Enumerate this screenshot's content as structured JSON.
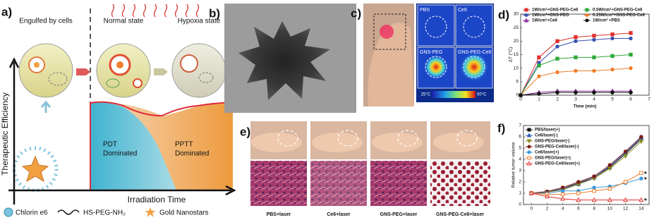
{
  "panel_labels": [
    "a)",
    "b)",
    "c)",
    "d)",
    "e)",
    "f)"
  ],
  "schematic": {
    "states": [
      "Engulfed by cells",
      "Normal state",
      "Hypoxia state"
    ],
    "pdt": [
      "PDT",
      "Dominated"
    ],
    "pptt": [
      "PPTT",
      "Dominated"
    ],
    "y_axis_label": "Therapeutic Efficiency",
    "x_axis_label": "Irradiation Time",
    "legend": [
      "Chlorin e6",
      "HS-PEG-NH₂",
      "Gold Nanostars"
    ]
  },
  "thermal": {
    "labels": [
      "PBS",
      "Ce6",
      "GNS-PEG",
      "GNS-PEG-Ce6"
    ],
    "scale_min": "25°C",
    "scale_max": "50°C"
  },
  "histology": {
    "labels": [
      "PBS+laser",
      "Ce6+laser",
      "GNS-PEG+laser",
      "GNS-PEG-Ce6+laser"
    ]
  },
  "chart_data": [
    {
      "type": "line",
      "x_label": "Time (min)",
      "y_label": "ΔT (°C)",
      "x": [
        0,
        1,
        2,
        3,
        4,
        5,
        6
      ],
      "xlim": [
        0,
        7
      ],
      "xticks": [
        0,
        1,
        2,
        3,
        4,
        5,
        6,
        7
      ],
      "ylim": [
        0,
        30
      ],
      "yticks": [
        0,
        5,
        10,
        15,
        20,
        25,
        30
      ],
      "series": [
        {
          "name": "1W/cm²+GNS-PEG-Ce6",
          "color": "#e0312e",
          "marker": "square",
          "values": [
            0,
            14,
            20,
            21.5,
            22,
            22.5,
            23
          ]
        },
        {
          "name": "1W/cm²+GNS-PEG",
          "color": "#3a4fb0",
          "marker": "circle",
          "values": [
            0,
            12,
            18,
            20,
            20.5,
            21,
            21
          ]
        },
        {
          "name": "1W/cm²+Ce6",
          "color": "#8a2a9a",
          "marker": "triangle",
          "values": [
            0,
            1,
            1.5,
            1.5,
            1.5,
            1.5,
            1.5
          ]
        },
        {
          "name": "0.5W/cm²+GNS-PEG-Ce6",
          "color": "#2ea83a",
          "marker": "square",
          "values": [
            0,
            11,
            13.5,
            14,
            14,
            14.5,
            15
          ]
        },
        {
          "name": "0.25W/cm²+GNS-PEG-Ce6",
          "color": "#f07c28",
          "marker": "circle",
          "values": [
            0,
            7,
            8.5,
            9,
            9,
            9.5,
            10
          ]
        },
        {
          "name": "1W/cm² +PBS",
          "color": "#111111",
          "marker": "circle",
          "values": [
            0,
            0.5,
            1,
            1,
            1,
            1,
            1
          ]
        }
      ]
    },
    {
      "type": "line",
      "y_label": "Relative tumor volume",
      "x": [
        0,
        2,
        4,
        6,
        8,
        10,
        12,
        14
      ],
      "xlim": [
        -1,
        15
      ],
      "xticks": [
        0,
        2,
        4,
        6,
        8,
        10,
        12,
        14
      ],
      "ylim": [
        0,
        7
      ],
      "yticks": [
        0,
        1,
        2,
        3,
        4,
        5,
        6,
        7
      ],
      "annotations": [
        "*",
        "*",
        "*"
      ],
      "series": [
        {
          "name": "PBS/laser(+)",
          "color": "#111111",
          "marker": "square",
          "values": [
            1,
            1.1,
            1.4,
            1.9,
            2.4,
            3.3,
            4.5,
            5.8
          ]
        },
        {
          "name": "Ce6/laser(-)",
          "color": "#2d5fb5",
          "marker": "triangle",
          "values": [
            1,
            1.1,
            1.4,
            1.8,
            2.4,
            3.4,
            4.6,
            5.9
          ]
        },
        {
          "name": "GNS-PEG/laser(-)",
          "color": "#8a8a20",
          "marker": "triangle-down",
          "values": [
            1,
            1.1,
            1.3,
            1.8,
            2.3,
            3.2,
            4.3,
            5.6
          ]
        },
        {
          "name": "GNS-PEG-Ce6/laser(-)",
          "color": "#7a1b1b",
          "marker": "circle",
          "values": [
            1,
            1.15,
            1.5,
            2,
            2.5,
            3.5,
            4.7,
            6
          ]
        },
        {
          "name": "Ce6/laser(+)",
          "color": "#3a9ad9",
          "marker": "circle",
          "values": [
            1,
            1,
            1.2,
            1.2,
            1.5,
            1.6,
            1.9,
            2.3
          ]
        },
        {
          "name": "GNS-PEG/laser(+)",
          "color": "#f07c28",
          "marker": "square-open",
          "values": [
            1,
            0.9,
            0.9,
            1,
            1.2,
            1.4,
            2,
            2.8
          ]
        },
        {
          "name": "GNS-PEG-Ce6/laser(+)",
          "color": "#e0312e",
          "marker": "triangle-open",
          "values": [
            1,
            0.7,
            0.5,
            0.4,
            0.4,
            0.4,
            0.4,
            0.4
          ]
        }
      ]
    }
  ]
}
